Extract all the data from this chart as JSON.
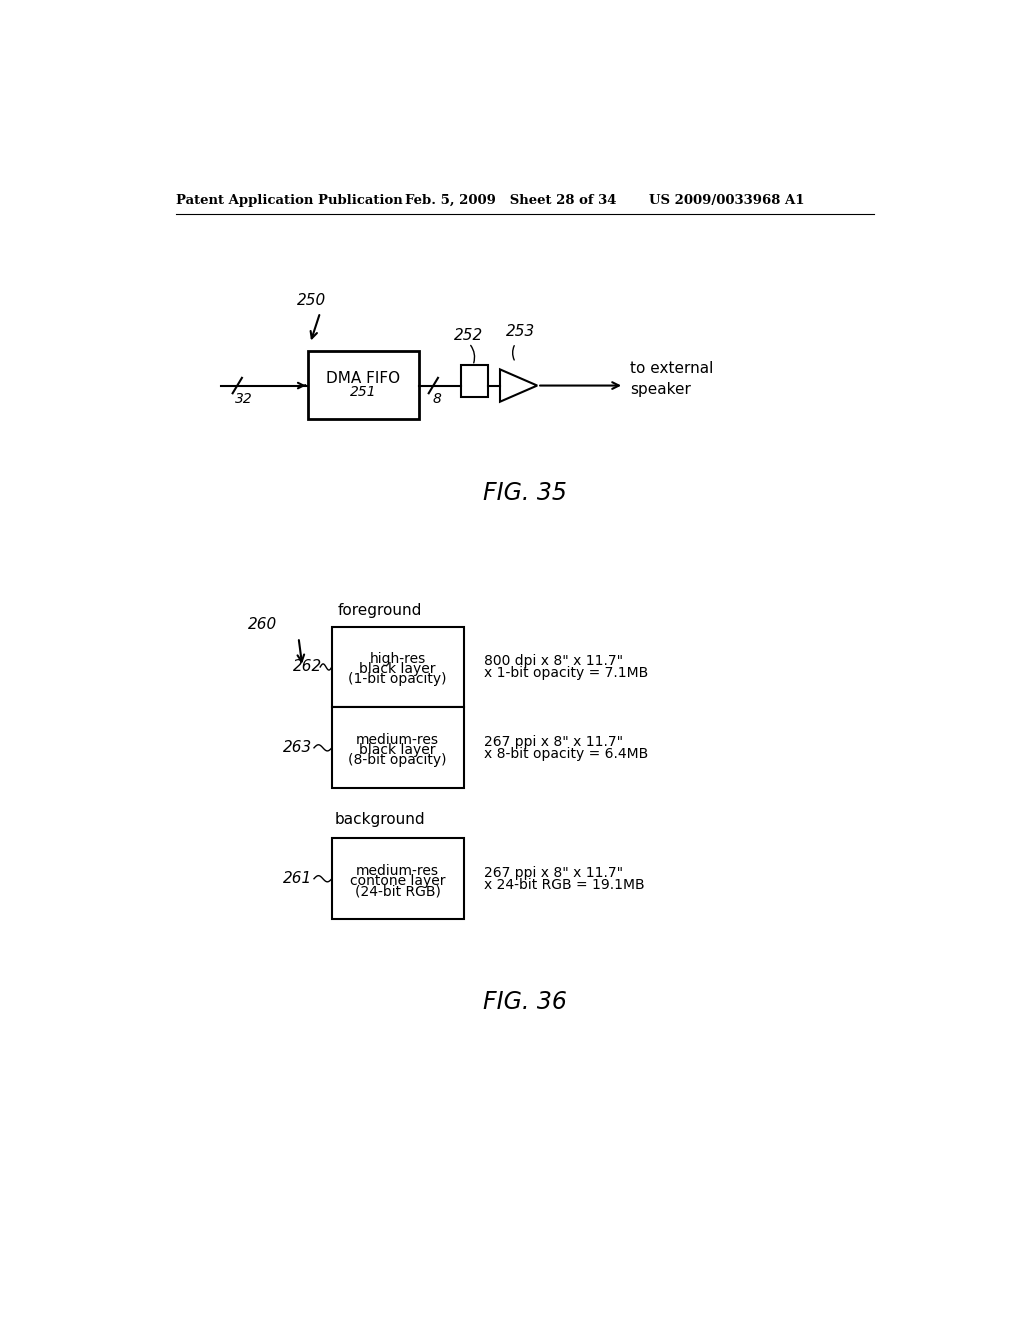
{
  "bg_color": "#ffffff",
  "header_left": "Patent Application Publication",
  "header_mid": "Feb. 5, 2009   Sheet 28 of 34",
  "header_right": "US 2009/0033968 A1",
  "fig35_caption": "FIG. 35",
  "fig36_caption": "FIG. 36",
  "fig35": {
    "ref250": "250",
    "ref32": "32",
    "ref251": "251",
    "dma_label": "DMA FIFO",
    "ref8": "8",
    "ref252": "252",
    "ref253": "253",
    "output_label": "to external\nspeaker"
  },
  "fig36": {
    "ref260": "260",
    "ref262": "262",
    "ref263": "263",
    "ref261": "261",
    "label_fg": "foreground",
    "label_bg": "background",
    "box262_line1": "high-res",
    "box262_line2": "black layer",
    "box262_line3": "(1-bit opacity)",
    "box263_line1": "medium-res",
    "box263_line2": "black layer",
    "box263_line3": "(8-bit opacity)",
    "box261_line1": "medium-res",
    "box261_line2": "contone layer",
    "box261_line3": "(24-bit RGB)",
    "spec262_line1": "800 dpi x 8\" x 11.7\"",
    "spec262_line2": "x 1-bit opacity = 7.1MB",
    "spec263_line1": "267 ppi x 8\" x 11.7\"",
    "spec263_line2": "x 8-bit opacity = 6.4MB",
    "spec261_line1": "267 ppi x 8\" x 11.7\"",
    "spec261_line2": "x 24-bit RGB = 19.1MB"
  }
}
